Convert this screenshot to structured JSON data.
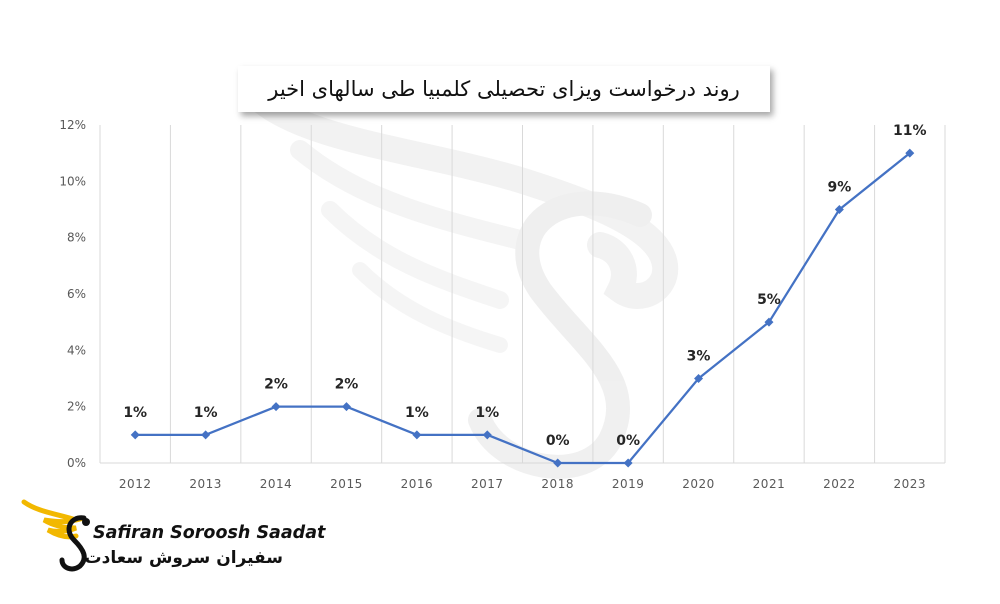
{
  "title": "روند درخواست ویزای تحصیلی کلمبیا طی سالهای اخیر",
  "logo": {
    "name_en": "Safiran Soroosh Saadat",
    "name_fa": "سفیران سروش سعادت"
  },
  "colors": {
    "line": "#4472C4",
    "grid": "#D9D9D9",
    "axis_text": "#595959",
    "label_text": "#262626",
    "logo_accent": "#F2B800"
  },
  "chart_data": {
    "type": "line",
    "title": "روند درخواست ویزای تحصیلی کلمبیا طی سالهای اخیر",
    "x": [
      "2012",
      "2013",
      "2014",
      "2015",
      "2016",
      "2017",
      "2018",
      "2019",
      "2020",
      "2021",
      "2022",
      "2023"
    ],
    "values": [
      1,
      1,
      2,
      2,
      1,
      1,
      0,
      0,
      3,
      5,
      9,
      11
    ],
    "data_labels": [
      "1%",
      "1%",
      "2%",
      "2%",
      "1%",
      "1%",
      "0%",
      "0%",
      "3%",
      "5%",
      "9%",
      "11%"
    ],
    "y_ticks": [
      "0%",
      "2%",
      "4%",
      "6%",
      "8%",
      "10%",
      "12%"
    ],
    "ylim": [
      0,
      12
    ],
    "marker": "diamond",
    "grid": "vertical",
    "xlabel": "",
    "ylabel": "",
    "legend": "none"
  }
}
